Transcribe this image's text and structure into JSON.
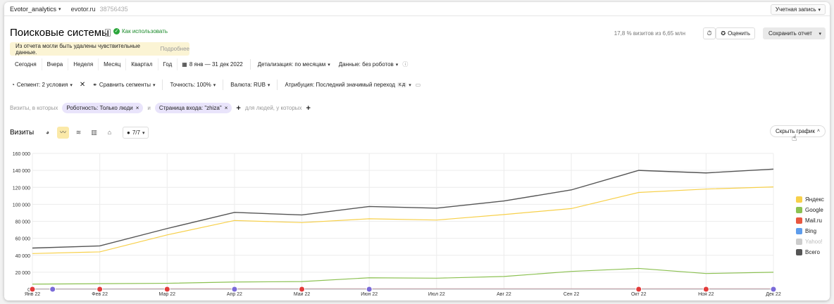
{
  "topbar": {
    "counter_name": "Evotor_analytics",
    "site": "evotor.ru",
    "counter_id": "38756435",
    "account_label": "Учетная запись"
  },
  "header": {
    "title": "Поисковые системы",
    "howto_label": "Как использовать",
    "visits_share": "17,8 % визитов из 6,65 млн",
    "rate_label": "Оценить",
    "save_label": "Сохранить отчет"
  },
  "warning": {
    "text": "Из отчета могли быть удалены чувствительные данные.",
    "more": "Подробнее"
  },
  "periods": [
    "Сегодня",
    "Вчера",
    "Неделя",
    "Месяц",
    "Квартал",
    "Год"
  ],
  "date_range": "8 янв — 31 дек 2022",
  "detail": "Детализация: по месяцам",
  "data_filter": "Данные: без роботов",
  "segment": "Сегмент: 2 условия",
  "compare": "Сравнить сегменты",
  "accuracy": "Точность: 100%",
  "currency": "Валюта: RUB",
  "attribution": "Атрибуция: Последний значимый переход",
  "attribution_badge": "к.д",
  "filters": {
    "visits_prefix": "Визиты, в которых",
    "tag1": "Роботность: Только люди",
    "and_label": "и",
    "tag2": "Страница входа: \"zhiza\"",
    "people_prefix": "для людей, у которых"
  },
  "chart_section": {
    "label": "Визиты",
    "series_count": "7/7",
    "hide_label": "Скрыть график"
  },
  "colors": {
    "yandex": "#f7d04a",
    "google": "#8cc152",
    "mailru": "#e9573f",
    "bing": "#5d9cec",
    "yahoo": "#cccccc",
    "total": "#555555",
    "tag_bg": "#e9e4fb",
    "warn_bg": "#fbf4d4"
  },
  "chart_data": {
    "type": "line",
    "categories": [
      "Янв 22",
      "Фев 22",
      "Мар 22",
      "Апр 22",
      "Май 22",
      "Июн 22",
      "Июл 22",
      "Авг 22",
      "Сен 22",
      "Окт 22",
      "Ноя 22",
      "Дек 22"
    ],
    "y_ticks": [
      "0",
      "20 000",
      "40 000",
      "60 000",
      "80 000",
      "100 000",
      "120 000",
      "140 000",
      "160 000"
    ],
    "ylim": [
      0,
      160000
    ],
    "grid": true,
    "legend_position": "right",
    "series": [
      {
        "name": "Яндекс",
        "color": "#f7d04a",
        "values": [
          42000,
          44000,
          64000,
          81000,
          78500,
          83000,
          81500,
          88000,
          95000,
          114000,
          118000,
          120500
        ]
      },
      {
        "name": "Google",
        "color": "#8cc152",
        "values": [
          6000,
          6500,
          7000,
          8500,
          9000,
          13500,
          13000,
          15000,
          21000,
          24500,
          18500,
          20000
        ]
      },
      {
        "name": "Mail.ru",
        "color": "#e9573f",
        "values": [
          300,
          300,
          400,
          400,
          400,
          400,
          400,
          400,
          400,
          400,
          400,
          400
        ]
      },
      {
        "name": "Bing",
        "color": "#5d9cec",
        "values": [
          100,
          100,
          100,
          100,
          100,
          100,
          100,
          100,
          100,
          100,
          100,
          100
        ]
      },
      {
        "name": "Yahoo!",
        "color": "#cccccc",
        "values": [
          20,
          20,
          20,
          20,
          20,
          20,
          20,
          20,
          20,
          20,
          20,
          20
        ]
      },
      {
        "name": "Всего",
        "color": "#555555",
        "values": [
          48500,
          51000,
          71500,
          90500,
          87500,
          97500,
          95500,
          104000,
          117000,
          140000,
          137000,
          141500
        ]
      }
    ]
  }
}
